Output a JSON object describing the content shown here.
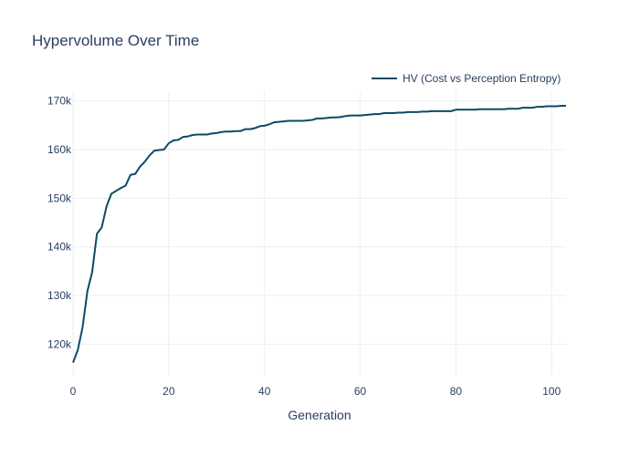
{
  "chart_data": {
    "type": "line",
    "title": "Hypervolume Over Time",
    "xlabel": "Generation",
    "ylabel": "",
    "xlim": [
      0,
      103
    ],
    "ylim": [
      113500,
      172000
    ],
    "grid": true,
    "legend_position": "top-right",
    "x_ticks": [
      0,
      20,
      40,
      60,
      80,
      100
    ],
    "x_tick_labels": [
      "0",
      "20",
      "40",
      "60",
      "80",
      "100"
    ],
    "y_ticks": [
      120000,
      130000,
      140000,
      150000,
      160000,
      170000
    ],
    "y_tick_labels": [
      "120k",
      "130k",
      "140k",
      "150k",
      "160k",
      "170k"
    ],
    "series": [
      {
        "name": "HV (Cost vs Perception Entropy)",
        "color": "#0d4a66",
        "x": [
          0,
          1,
          2,
          3,
          4,
          5,
          6,
          7,
          8,
          9,
          10,
          11,
          12,
          13,
          14,
          15,
          16,
          17,
          18,
          19,
          20,
          21,
          22,
          23,
          24,
          25,
          26,
          27,
          28,
          29,
          30,
          31,
          32,
          33,
          34,
          35,
          36,
          37,
          38,
          39,
          40,
          41,
          42,
          43,
          44,
          45,
          46,
          47,
          48,
          49,
          50,
          51,
          52,
          53,
          54,
          55,
          56,
          57,
          58,
          59,
          60,
          61,
          62,
          63,
          64,
          65,
          66,
          67,
          68,
          69,
          70,
          71,
          72,
          73,
          74,
          75,
          76,
          77,
          78,
          79,
          80,
          81,
          82,
          83,
          84,
          85,
          86,
          87,
          88,
          89,
          90,
          91,
          92,
          93,
          94,
          95,
          96,
          97,
          98,
          99,
          100,
          101,
          102,
          103
        ],
        "values": [
          116200,
          118800,
          123500,
          130900,
          134800,
          142700,
          144000,
          148300,
          150900,
          151500,
          152100,
          152600,
          154800,
          155000,
          156500,
          157500,
          158800,
          159800,
          159900,
          160000,
          161300,
          161900,
          162000,
          162600,
          162700,
          163000,
          163100,
          163100,
          163100,
          163300,
          163400,
          163600,
          163700,
          163700,
          163800,
          163800,
          164200,
          164200,
          164400,
          164800,
          164900,
          165200,
          165600,
          165700,
          165800,
          165900,
          165900,
          165900,
          165900,
          166000,
          166100,
          166400,
          166400,
          166500,
          166600,
          166600,
          166700,
          166900,
          167000,
          167000,
          167000,
          167100,
          167200,
          167300,
          167300,
          167500,
          167500,
          167500,
          167600,
          167600,
          167700,
          167700,
          167700,
          167800,
          167800,
          167900,
          167900,
          167900,
          167900,
          167900,
          168200,
          168200,
          168200,
          168200,
          168200,
          168300,
          168300,
          168300,
          168300,
          168300,
          168300,
          168400,
          168400,
          168400,
          168600,
          168600,
          168600,
          168800,
          168800,
          168900,
          168900,
          168900,
          169000,
          169000
        ]
      }
    ]
  }
}
